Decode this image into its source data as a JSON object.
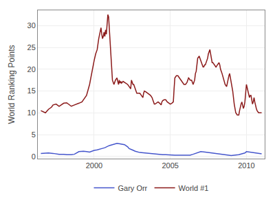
{
  "chart_data": {
    "type": "line",
    "ylabel": "World Ranking Points",
    "xlim": [
      1996.3,
      2011.2
    ],
    "ylim": [
      -0.5,
      33.5
    ],
    "xticks": [
      2000,
      2005,
      2010
    ],
    "yticks": [
      0,
      5,
      10,
      15,
      20,
      25,
      30
    ],
    "grid": true,
    "legend": "bottom",
    "series": [
      {
        "name": "Gary Orr",
        "color": "#4455cc",
        "x": [
          1996.5,
          1997.0,
          1997.3,
          1997.5,
          1997.7,
          1998.0,
          1998.2,
          1998.5,
          1998.7,
          1999.0,
          1999.3,
          1999.5,
          1999.7,
          2000.0,
          2000.2,
          2000.5,
          2000.7,
          2001.0,
          2001.3,
          2001.5,
          2001.7,
          2002.0,
          2002.2,
          2002.3,
          2002.5,
          2002.7,
          2003.0,
          2003.3,
          2003.5,
          2003.7,
          2004.0,
          2004.3,
          2004.5,
          2004.7,
          2005.0,
          2005.3,
          2005.5,
          2005.7,
          2006.0,
          2006.3,
          2006.5,
          2007.0,
          2007.3,
          2007.5,
          2007.8,
          2008.0,
          2008.3,
          2008.5,
          2008.7,
          2009.0,
          2009.2,
          2009.3,
          2009.5,
          2009.7,
          2009.9,
          2010.0,
          2010.2,
          2010.4,
          2010.6,
          2010.8,
          2011.0
        ],
        "values": [
          0.7,
          0.8,
          0.7,
          0.6,
          0.5,
          0.5,
          0.4,
          0.4,
          0.5,
          1.1,
          1.2,
          1.1,
          1.0,
          1.4,
          1.5,
          1.8,
          2.0,
          2.5,
          2.8,
          3.0,
          2.9,
          2.7,
          2.2,
          1.8,
          1.5,
          1.2,
          0.9,
          0.8,
          0.7,
          0.6,
          0.5,
          0.5,
          0.4,
          0.4,
          0.3,
          0.3,
          0.3,
          0.3,
          0.2,
          0.3,
          0.5,
          1.1,
          1.0,
          0.9,
          0.8,
          0.7,
          0.5,
          0.4,
          0.3,
          0.2,
          0.3,
          0.3,
          0.4,
          0.6,
          0.8,
          1.1,
          1.0,
          0.9,
          0.8,
          0.7,
          0.6
        ]
      },
      {
        "name": "World #1",
        "color": "#8b1a1a",
        "x": [
          1996.5,
          1996.7,
          1996.8,
          1997.0,
          1997.2,
          1997.3,
          1997.5,
          1997.7,
          1998.0,
          1998.2,
          1998.3,
          1998.5,
          1998.7,
          1998.9,
          1999.0,
          1999.2,
          1999.3,
          1999.5,
          1999.7,
          1999.8,
          1999.9,
          2000.0,
          2000.1,
          2000.2,
          2000.3,
          2000.4,
          2000.45,
          2000.5,
          2000.55,
          2000.6,
          2000.65,
          2000.7,
          2000.75,
          2000.8,
          2000.85,
          2000.9,
          2000.95,
          2001.0,
          2001.05,
          2001.1,
          2001.15,
          2001.2,
          2001.3,
          2001.4,
          2001.5,
          2001.6,
          2001.65,
          2001.7,
          2001.75,
          2001.8,
          2001.9,
          2002.0,
          2002.1,
          2002.2,
          2002.3,
          2002.4,
          2002.45,
          2002.5,
          2002.55,
          2002.6,
          2002.7,
          2002.8,
          2002.9,
          2003.0,
          2003.1,
          2003.2,
          2003.25,
          2003.3,
          2003.4,
          2003.5,
          2003.6,
          2003.7,
          2003.8,
          2003.9,
          2003.95,
          2004.0,
          2004.1,
          2004.2,
          2004.3,
          2004.4,
          2004.45,
          2004.5,
          2004.6,
          2004.7,
          2004.8,
          2004.9,
          2004.95,
          2005.0,
          2005.1,
          2005.2,
          2005.25,
          2005.3,
          2005.4,
          2005.5,
          2005.6,
          2005.7,
          2005.8,
          2005.9,
          2005.95,
          2006.0,
          2006.1,
          2006.2,
          2006.25,
          2006.3,
          2006.35,
          2006.4,
          2006.5,
          2006.6,
          2006.65,
          2006.7,
          2006.8,
          2006.85,
          2006.9,
          2006.95,
          2007.0,
          2007.05,
          2007.1,
          2007.15,
          2007.2,
          2007.25,
          2007.3,
          2007.35,
          2007.4,
          2007.45,
          2007.5,
          2007.55,
          2007.6,
          2007.65,
          2007.7,
          2007.75,
          2007.8,
          2007.9,
          2008.0,
          2008.1,
          2008.2,
          2008.25,
          2008.3,
          2008.4,
          2008.5,
          2008.6,
          2008.7,
          2008.75,
          2008.8,
          2008.85,
          2008.9,
          2008.95,
          2009.0,
          2009.1,
          2009.2,
          2009.25,
          2009.3,
          2009.4,
          2009.5,
          2009.55,
          2009.6,
          2009.65,
          2009.7,
          2009.75,
          2009.8,
          2009.85,
          2009.9,
          2009.95,
          2010.0,
          2010.1,
          2010.2,
          2010.25,
          2010.3,
          2010.35,
          2010.4,
          2010.45,
          2010.5,
          2010.55,
          2010.6,
          2010.65,
          2010.7,
          2010.8,
          2010.9,
          2011.0
        ],
        "values": [
          10.5,
          10.2,
          10.0,
          10.8,
          11.3,
          11.8,
          12.0,
          11.5,
          12.2,
          12.3,
          12.0,
          11.5,
          11.8,
          12.0,
          12.2,
          12.5,
          13.0,
          14.0,
          16.5,
          18.5,
          20.5,
          22.0,
          23.5,
          24.5,
          27.0,
          29.0,
          29.5,
          28.0,
          27.0,
          27.5,
          28.5,
          27.5,
          29.0,
          28.0,
          30.0,
          32.5,
          32.0,
          29.0,
          27.0,
          22.0,
          20.0,
          17.5,
          16.5,
          17.5,
          18.0,
          16.5,
          17.5,
          16.8,
          17.2,
          16.8,
          17.2,
          17.0,
          16.8,
          16.5,
          16.0,
          15.5,
          17.5,
          17.0,
          16.5,
          16.5,
          15.5,
          14.5,
          14.5,
          14.5,
          14.0,
          13.5,
          14.5,
          15.0,
          14.8,
          14.5,
          14.2,
          14.0,
          13.5,
          12.5,
          12.0,
          12.0,
          12.3,
          12.5,
          12.2,
          11.8,
          12.5,
          12.8,
          13.0,
          13.0,
          12.5,
          12.2,
          12.0,
          12.0,
          12.2,
          12.5,
          15.5,
          18.0,
          18.5,
          18.5,
          18.0,
          17.5,
          17.0,
          16.5,
          16.5,
          16.5,
          17.0,
          18.0,
          17.8,
          17.5,
          17.5,
          17.5,
          16.5,
          17.5,
          19.0,
          19.5,
          22.5,
          22.8,
          23.0,
          22.5,
          22.0,
          21.5,
          21.0,
          20.5,
          20.5,
          21.0,
          21.0,
          21.5,
          22.0,
          22.5,
          23.5,
          24.0,
          24.5,
          23.5,
          22.0,
          21.5,
          21.5,
          21.0,
          20.5,
          21.0,
          21.5,
          21.0,
          20.0,
          19.0,
          17.5,
          16.5,
          16.0,
          17.0,
          18.0,
          18.5,
          19.0,
          18.0,
          17.0,
          15.0,
          12.0,
          10.5,
          10.0,
          9.5,
          9.5,
          10.5,
          11.5,
          12.0,
          12.5,
          11.5,
          11.0,
          11.5,
          12.5,
          14.5,
          16.5,
          15.0,
          13.5,
          14.0,
          14.0,
          13.0,
          12.0,
          12.5,
          13.5,
          12.5,
          11.5,
          11.0,
          10.5,
          10.0,
          10.0,
          10.0
        ]
      }
    ]
  }
}
